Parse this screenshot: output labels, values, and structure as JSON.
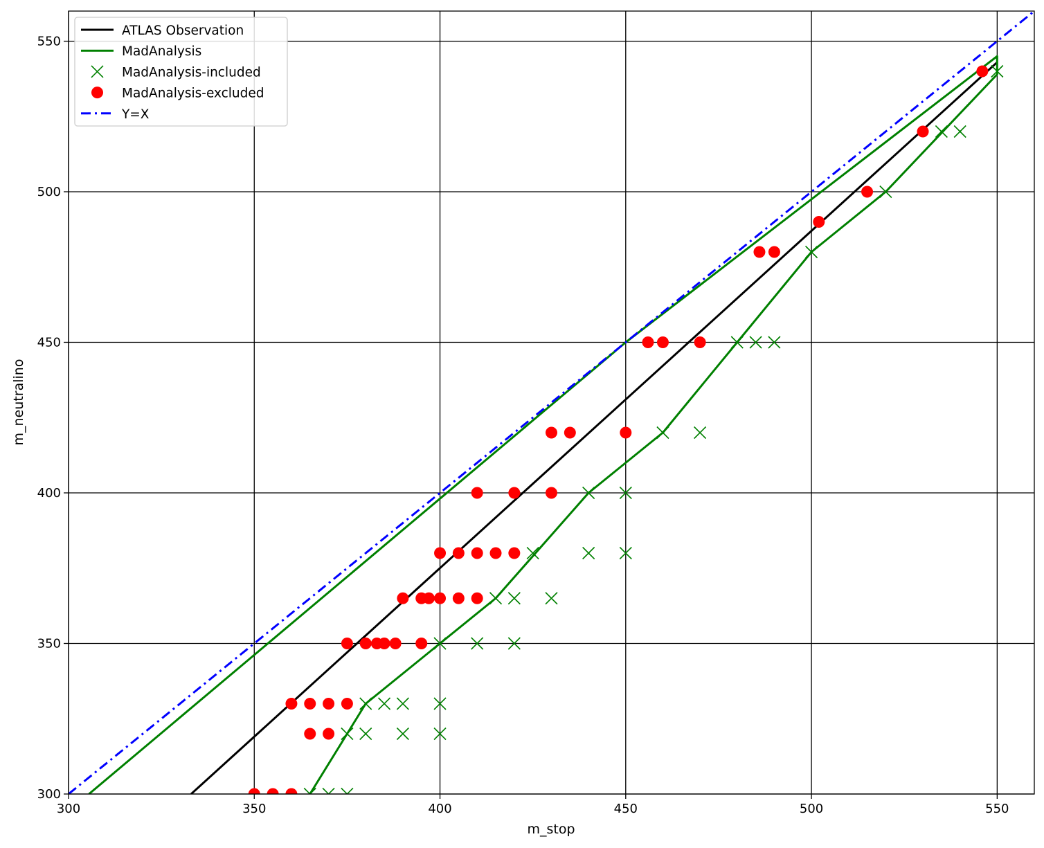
{
  "chart_data": {
    "type": "scatter",
    "xlabel": "m_stop",
    "ylabel": "m_neutralino",
    "xlim": [
      300,
      560
    ],
    "ylim": [
      300,
      560
    ],
    "xticks": [
      300,
      350,
      400,
      450,
      500,
      550
    ],
    "yticks": [
      300,
      350,
      400,
      450,
      500,
      550
    ],
    "grid": true,
    "legend_position": "top-left",
    "colors": {
      "atlas": "#000000",
      "madanalysis": "#008000",
      "included": "#008000",
      "excluded": "#ff0000",
      "yx": "#0000ff"
    },
    "legend": [
      {
        "label": "ATLAS Observation",
        "style": "line",
        "color": "#000000"
      },
      {
        "label": "MadAnalysis",
        "style": "line",
        "color": "#008000"
      },
      {
        "label": "MadAnalysis-included",
        "style": "x",
        "color": "#008000"
      },
      {
        "label": "MadAnalysis-excluded",
        "style": "dot",
        "color": "#ff0000"
      },
      {
        "label": "Y=X",
        "style": "dashdot",
        "color": "#0000ff"
      }
    ],
    "series": [
      {
        "name": "ATLAS Observation",
        "kind": "line",
        "points": [
          [
            333,
            300
          ],
          [
            550,
            543
          ]
        ]
      },
      {
        "name": "MadAnalysis",
        "kind": "line",
        "points": [
          [
            305.5,
            300
          ],
          [
            450,
            450
          ],
          [
            550,
            545
          ],
          [
            550,
            539
          ],
          [
            520,
            500
          ],
          [
            500,
            480
          ],
          [
            480,
            450
          ],
          [
            460,
            420
          ],
          [
            440,
            400
          ],
          [
            415,
            365
          ],
          [
            400,
            350
          ],
          [
            380,
            330
          ],
          [
            375,
            320
          ],
          [
            365,
            300
          ]
        ]
      },
      {
        "name": "MadAnalysis-included",
        "kind": "x",
        "points": [
          [
            365,
            300
          ],
          [
            370,
            300
          ],
          [
            375,
            300
          ],
          [
            375,
            320
          ],
          [
            380,
            320
          ],
          [
            390,
            320
          ],
          [
            400,
            320
          ],
          [
            380,
            330
          ],
          [
            385,
            330
          ],
          [
            390,
            330
          ],
          [
            400,
            330
          ],
          [
            400,
            350
          ],
          [
            410,
            350
          ],
          [
            420,
            350
          ],
          [
            415,
            365
          ],
          [
            420,
            365
          ],
          [
            430,
            365
          ],
          [
            425,
            380
          ],
          [
            440,
            380
          ],
          [
            450,
            380
          ],
          [
            440,
            400
          ],
          [
            450,
            400
          ],
          [
            460,
            420
          ],
          [
            470,
            420
          ],
          [
            480,
            450
          ],
          [
            485,
            450
          ],
          [
            490,
            450
          ],
          [
            500,
            480
          ],
          [
            520,
            500
          ],
          [
            535,
            520
          ],
          [
            540,
            520
          ],
          [
            550,
            540
          ]
        ]
      },
      {
        "name": "MadAnalysis-excluded",
        "kind": "dot",
        "points": [
          [
            350,
            300
          ],
          [
            355,
            300
          ],
          [
            360,
            300
          ],
          [
            365,
            320
          ],
          [
            370,
            320
          ],
          [
            360,
            330
          ],
          [
            365,
            330
          ],
          [
            370,
            330
          ],
          [
            375,
            330
          ],
          [
            375,
            350
          ],
          [
            380,
            350
          ],
          [
            383,
            350
          ],
          [
            385,
            350
          ],
          [
            388,
            350
          ],
          [
            395,
            350
          ],
          [
            390,
            365
          ],
          [
            395,
            365
          ],
          [
            397,
            365
          ],
          [
            400,
            365
          ],
          [
            405,
            365
          ],
          [
            410,
            365
          ],
          [
            400,
            380
          ],
          [
            405,
            380
          ],
          [
            410,
            380
          ],
          [
            415,
            380
          ],
          [
            420,
            380
          ],
          [
            410,
            400
          ],
          [
            420,
            400
          ],
          [
            430,
            400
          ],
          [
            430,
            420
          ],
          [
            435,
            420
          ],
          [
            450,
            420
          ],
          [
            456,
            450
          ],
          [
            460,
            450
          ],
          [
            470,
            450
          ],
          [
            486,
            480
          ],
          [
            490,
            480
          ],
          [
            502,
            490
          ],
          [
            515,
            500
          ],
          [
            530,
            520
          ],
          [
            546,
            540
          ]
        ]
      },
      {
        "name": "Y=X",
        "kind": "dashdot",
        "points": [
          [
            300,
            300
          ],
          [
            560,
            560
          ]
        ]
      }
    ]
  }
}
